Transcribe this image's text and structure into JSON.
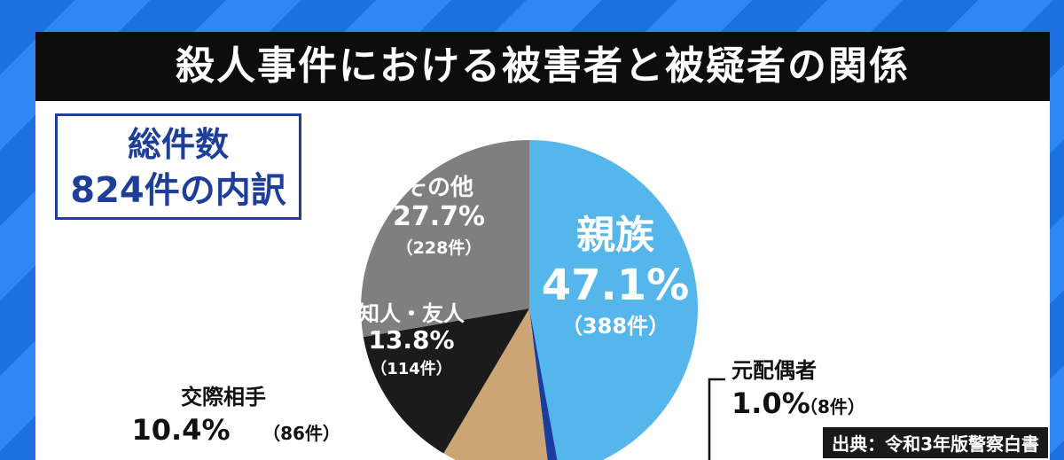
{
  "title": "殺人事件における被害者と被疑者の関係",
  "total": {
    "line1": "総件数",
    "line2": "824件の内訳"
  },
  "source": "出典：令和3年版警察白書",
  "colors": {
    "title_bg": "#0d0d0d",
    "accent": "#1d3f99",
    "background_stripes": "#2f86f5"
  },
  "chart_data": {
    "type": "pie",
    "slices": [
      {
        "label": "親族",
        "percent": "47.1%",
        "count": "（388件）",
        "value": 47.1,
        "color": "#55b6ec"
      },
      {
        "label": "元配偶者",
        "percent": "1.0%",
        "count": "（8件）",
        "value": 1.0,
        "color": "#1c3c9e"
      },
      {
        "label": "交際相手",
        "percent": "10.4%",
        "count": "（86件）",
        "value": 10.4,
        "color": "#cca574"
      },
      {
        "label": "知人・友人",
        "percent": "13.8%",
        "count": "（114件）",
        "value": 13.8,
        "color": "#1b1b1b"
      },
      {
        "label": "その他",
        "percent": "27.7%",
        "count": "（228件）",
        "value": 27.7,
        "color": "#7f7f7f"
      }
    ]
  }
}
